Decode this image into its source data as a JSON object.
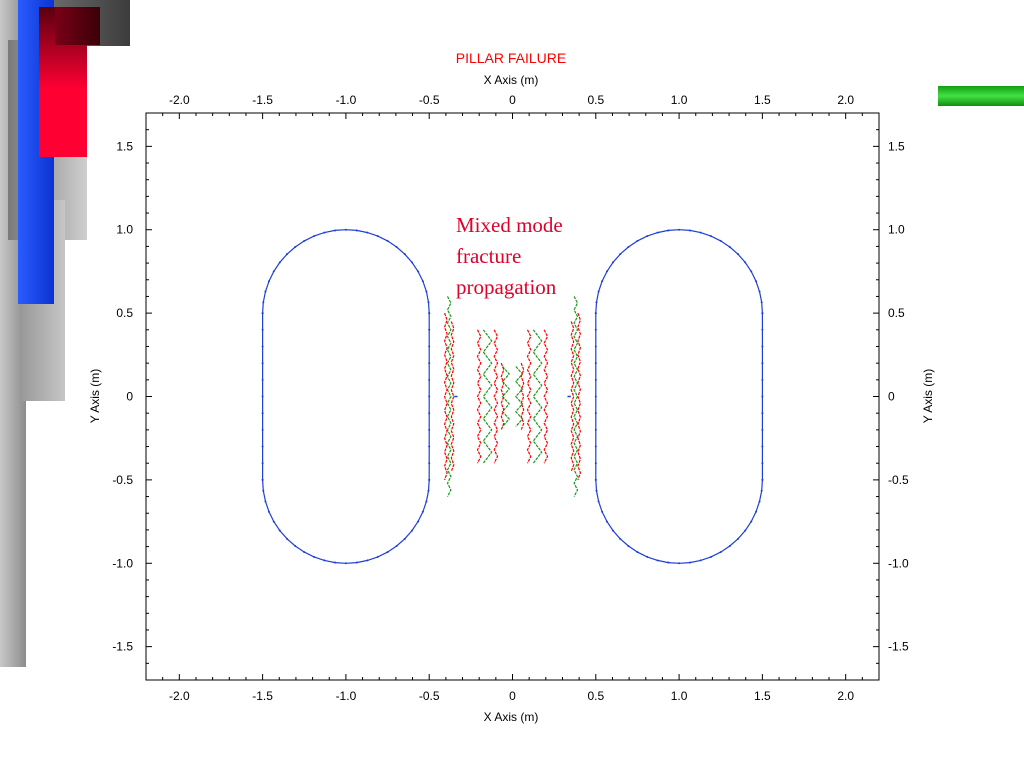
{
  "colors": {
    "outline": "#1f3fd6",
    "fracture_red": "#ff0000",
    "fracture_green": "#1a9a1a",
    "title": "#ff0000",
    "annotation": "#e0002a",
    "deco_red": "#ff0033",
    "deco_blue": "#1a4fff",
    "deco_green": "#22c422"
  },
  "chart_data": {
    "type": "diagram",
    "title": "PILLAR FAILURE",
    "xlabel": "X Axis (m)",
    "ylabel": "Y Axis (m)",
    "xlim": [
      -2.2,
      2.2
    ],
    "ylim": [
      -1.7,
      1.7
    ],
    "x_ticks": [
      "-2.0",
      "-1.5",
      "-1.0",
      "-0.5",
      "0",
      "0.5",
      "1.0",
      "1.5",
      "2.0"
    ],
    "y_ticks": [
      "1.5",
      "1.0",
      "0.5",
      "0",
      "-0.5",
      "-1.0",
      "-1.5"
    ],
    "openings": [
      {
        "name": "left-opening",
        "center_x": -1.0,
        "half_height_straight": 0.5,
        "radius": 0.5
      },
      {
        "name": "right-opening",
        "center_x": 1.0,
        "half_height_straight": 0.5,
        "radius": 0.5
      }
    ],
    "annotation": [
      "Mixed mode",
      "fracture",
      "propagation"
    ]
  }
}
